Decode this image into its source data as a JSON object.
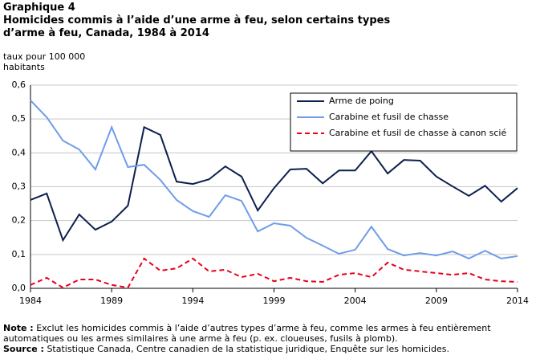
{
  "chart_data": {
    "type": "line",
    "label": "Graphique 4",
    "title": "Homicides commis à l’aide d’une arme à feu, selon certains types d’arme à feu, Canada, 1984 à 2014",
    "y_label": "taux pour 100 000 habitants",
    "x": [
      1984,
      1985,
      1986,
      1987,
      1988,
      1989,
      1990,
      1991,
      1992,
      1993,
      1994,
      1995,
      1996,
      1997,
      1998,
      1999,
      2000,
      2001,
      2002,
      2003,
      2004,
      2005,
      2006,
      2007,
      2008,
      2009,
      2010,
      2011,
      2012,
      2013,
      2014
    ],
    "xlim": [
      1984,
      2014
    ],
    "xticks": [
      1984,
      1989,
      1994,
      1999,
      2004,
      2009,
      2014
    ],
    "ylim": [
      0,
      0.6
    ],
    "yticks": [
      {
        "value": 0,
        "label": "0,0"
      },
      {
        "value": 0.1,
        "label": "0,1"
      },
      {
        "value": 0.2,
        "label": "0,2"
      },
      {
        "value": 0.3,
        "label": "0,3"
      },
      {
        "value": 0.4,
        "label": "0,4"
      },
      {
        "value": 0.5,
        "label": "0,5"
      },
      {
        "value": 0.6,
        "label": "0,6"
      }
    ],
    "grid": true,
    "legend": "upper right",
    "series": [
      {
        "name": "Arme de poing",
        "color": "#0d1f4f",
        "dashed": false,
        "values": [
          0.261,
          0.28,
          0.142,
          0.218,
          0.173,
          0.197,
          0.244,
          0.476,
          0.453,
          0.315,
          0.308,
          0.322,
          0.36,
          0.33,
          0.23,
          0.296,
          0.351,
          0.353,
          0.31,
          0.348,
          0.348,
          0.405,
          0.339,
          0.379,
          0.377,
          0.33,
          0.301,
          0.273,
          0.303,
          0.256,
          0.296
        ]
      },
      {
        "name": "Carabine et fusil de chasse",
        "color": "#6f9ce8",
        "dashed": false,
        "values": [
          0.555,
          0.505,
          0.436,
          0.41,
          0.351,
          0.476,
          0.358,
          0.365,
          0.32,
          0.261,
          0.228,
          0.211,
          0.275,
          0.258,
          0.168,
          0.192,
          0.185,
          0.149,
          0.126,
          0.102,
          0.114,
          0.182,
          0.116,
          0.097,
          0.104,
          0.097,
          0.109,
          0.088,
          0.111,
          0.088,
          0.095
        ]
      },
      {
        "name": "Carabine et fusil de chasse à canon scié",
        "color": "#e8001c",
        "dashed": true,
        "values": [
          0.01,
          0.031,
          0.002,
          0.026,
          0.026,
          0.01,
          0.002,
          0.088,
          0.052,
          0.059,
          0.088,
          0.05,
          0.055,
          0.033,
          0.043,
          0.021,
          0.031,
          0.021,
          0.019,
          0.04,
          0.045,
          0.033,
          0.076,
          0.055,
          0.05,
          0.045,
          0.04,
          0.045,
          0.026,
          0.021,
          0.019
        ]
      }
    ],
    "notes": [
      {
        "label": "Note :",
        "text": "Exclut les homicides commis à l’aide d’autres types d’arme à feu, comme les armes à feu entièrement automatiques ou les armes similaires à une arme à feu (p. ex. cloueuses, fusils à plomb)."
      },
      {
        "label": "Source :",
        "text": "Statistique Canada, Centre canadien de la statistique juridique, Enquête sur les homicides."
      }
    ]
  }
}
